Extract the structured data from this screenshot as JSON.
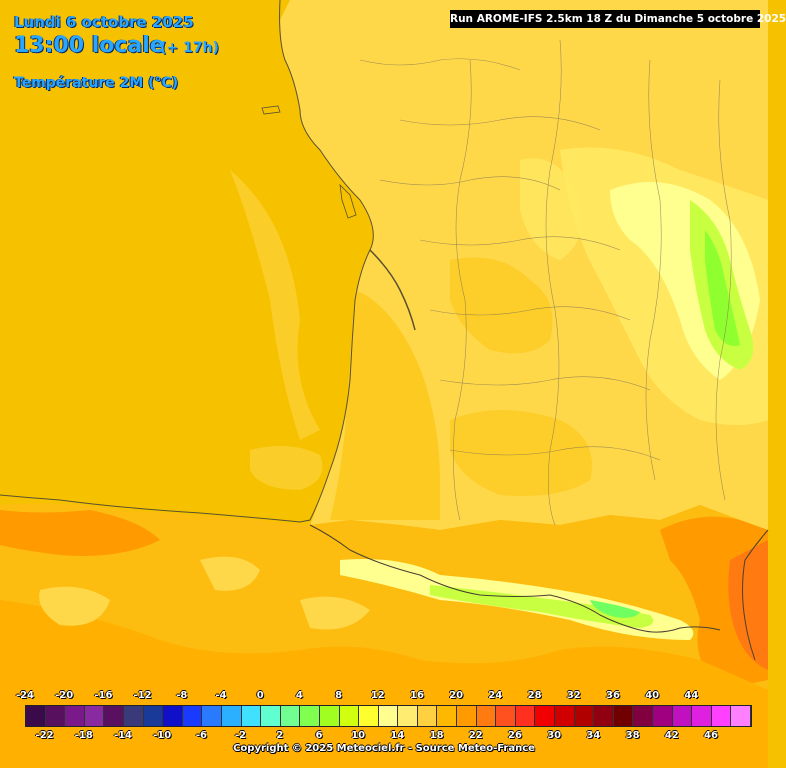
{
  "header": {
    "date": "Lundi 6 octobre 2025",
    "time": "13:00 locale",
    "offset": "(+ 17h)",
    "parameter": "Température 2M (°C)",
    "run": "Run AROME-IFS 2.5km 18 Z du Dimanche 5 octobre 2025"
  },
  "legend": {
    "top_labels": [
      "-24",
      "-20",
      "-16",
      "-12",
      "-8",
      "-4",
      "0",
      "4",
      "8",
      "12",
      "16",
      "20",
      "24",
      "28",
      "32",
      "36",
      "40",
      "44"
    ],
    "bottom_labels": [
      "-22",
      "-18",
      "-14",
      "-10",
      "-6",
      "-2",
      "2",
      "6",
      "10",
      "14",
      "18",
      "22",
      "26",
      "30",
      "34",
      "38",
      "42",
      "46"
    ],
    "colors": [
      "#3a0a4a",
      "#56105e",
      "#7a1a8a",
      "#8a2aa0",
      "#5a1060",
      "#3a3a7a",
      "#1a3a9a",
      "#1010c8",
      "#1a3aff",
      "#2a7aff",
      "#2ab0ff",
      "#40e0ff",
      "#60ffd0",
      "#70ff90",
      "#80ff50",
      "#a0ff20",
      "#d0ff10",
      "#ffff30",
      "#ffff90",
      "#ffec70",
      "#ffd040",
      "#ffb800",
      "#ff9a00",
      "#ff7a10",
      "#ff5020",
      "#ff3020",
      "#f00000",
      "#d00000",
      "#b00000",
      "#900010",
      "#700000",
      "#800040",
      "#a00080",
      "#c010c0",
      "#e020e0",
      "#ff40ff",
      "#ff80ff"
    ]
  },
  "copyright": "Copyright © 2025 Meteociel.fr - Source Meteo-France",
  "colors": {
    "sea": "#f6c200",
    "land_base": "#ffd84a",
    "land_warm": "#fcca20",
    "land_cool": "#ffe860",
    "mountain_cool": "#ffff90",
    "green": "#90ff30",
    "hot": "#ff9a00",
    "hotter": "#ff7a10",
    "border": "#5a5030",
    "title": "#29a7ff"
  }
}
